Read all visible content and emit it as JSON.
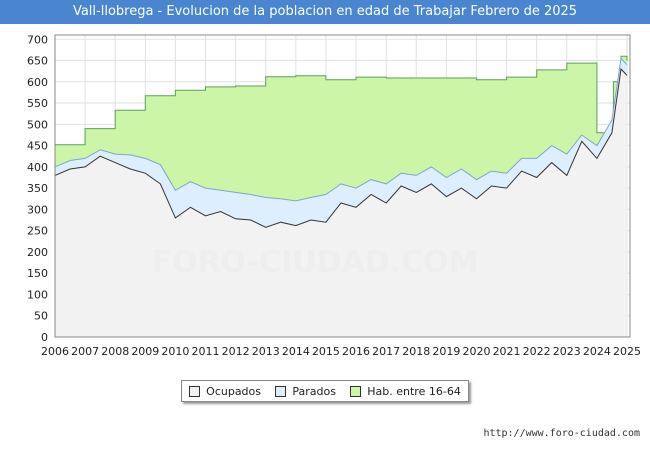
{
  "chart_data": {
    "type": "area",
    "title": "Vall-llobrega - Evolucion de la poblacion en edad de Trabajar Febrero de 2025",
    "xlabel": "",
    "ylabel": "",
    "xlim": [
      2006,
      2025.1
    ],
    "ylim": [
      0,
      710
    ],
    "yticks": [
      0,
      50,
      100,
      150,
      200,
      250,
      300,
      350,
      400,
      450,
      500,
      550,
      600,
      650,
      700
    ],
    "xticks": [
      2006,
      2007,
      2008,
      2009,
      2010,
      2011,
      2012,
      2013,
      2014,
      2015,
      2016,
      2017,
      2018,
      2019,
      2020,
      2021,
      2022,
      2023,
      2024,
      2025
    ],
    "grid": true,
    "legend_position": "bottom",
    "series": [
      {
        "name": "Hab. entre 16-64",
        "color": "#ccf5a8",
        "line_color": "#5aa05a",
        "step": true,
        "points": [
          [
            2006,
            452
          ],
          [
            2007,
            490
          ],
          [
            2008,
            533
          ],
          [
            2009,
            567
          ],
          [
            2010,
            580
          ],
          [
            2011,
            588
          ],
          [
            2012,
            590
          ],
          [
            2013,
            612
          ],
          [
            2014,
            614
          ],
          [
            2015,
            605
          ],
          [
            2016,
            611
          ],
          [
            2017,
            609
          ],
          [
            2018,
            609
          ],
          [
            2019,
            609
          ],
          [
            2020,
            605
          ],
          [
            2021,
            611
          ],
          [
            2022,
            628
          ],
          [
            2023,
            644
          ],
          [
            2024,
            480
          ],
          [
            2024.55,
            600
          ],
          [
            2024.8,
            660
          ],
          [
            2025,
            650
          ]
        ]
      },
      {
        "name": "Parados",
        "color": "#ddeeff",
        "line_color": "#7ea6cc",
        "points": [
          [
            2006,
            400
          ],
          [
            2006.5,
            415
          ],
          [
            2007,
            420
          ],
          [
            2007.5,
            440
          ],
          [
            2008,
            430
          ],
          [
            2008.5,
            428
          ],
          [
            2009,
            420
          ],
          [
            2009.5,
            405
          ],
          [
            2010,
            345
          ],
          [
            2010.5,
            365
          ],
          [
            2011,
            350
          ],
          [
            2011.5,
            345
          ],
          [
            2012,
            340
          ],
          [
            2012.5,
            335
          ],
          [
            2013,
            328
          ],
          [
            2013.5,
            325
          ],
          [
            2014,
            320
          ],
          [
            2014.5,
            328
          ],
          [
            2015,
            335
          ],
          [
            2015.5,
            360
          ],
          [
            2016,
            350
          ],
          [
            2016.5,
            370
          ],
          [
            2017,
            360
          ],
          [
            2017.5,
            385
          ],
          [
            2018,
            380
          ],
          [
            2018.5,
            400
          ],
          [
            2019,
            375
          ],
          [
            2019.5,
            395
          ],
          [
            2020,
            370
          ],
          [
            2020.5,
            390
          ],
          [
            2021,
            385
          ],
          [
            2021.5,
            420
          ],
          [
            2022,
            420
          ],
          [
            2022.5,
            450
          ],
          [
            2023,
            430
          ],
          [
            2023.5,
            475
          ],
          [
            2024,
            450
          ],
          [
            2024.5,
            510
          ],
          [
            2024.8,
            655
          ],
          [
            2025,
            640
          ]
        ]
      },
      {
        "name": "Ocupados",
        "color": "#f2f2f2",
        "line_color": "#333333",
        "points": [
          [
            2006,
            380
          ],
          [
            2006.5,
            395
          ],
          [
            2007,
            400
          ],
          [
            2007.5,
            425
          ],
          [
            2008,
            410
          ],
          [
            2008.5,
            395
          ],
          [
            2009,
            385
          ],
          [
            2009.5,
            360
          ],
          [
            2010,
            280
          ],
          [
            2010.5,
            305
          ],
          [
            2011,
            285
          ],
          [
            2011.5,
            295
          ],
          [
            2012,
            278
          ],
          [
            2012.5,
            275
          ],
          [
            2013,
            258
          ],
          [
            2013.5,
            270
          ],
          [
            2014,
            262
          ],
          [
            2014.5,
            275
          ],
          [
            2015,
            270
          ],
          [
            2015.5,
            315
          ],
          [
            2016,
            305
          ],
          [
            2016.5,
            335
          ],
          [
            2017,
            315
          ],
          [
            2017.5,
            355
          ],
          [
            2018,
            340
          ],
          [
            2018.5,
            360
          ],
          [
            2019,
            330
          ],
          [
            2019.5,
            350
          ],
          [
            2020,
            325
          ],
          [
            2020.5,
            355
          ],
          [
            2021,
            350
          ],
          [
            2021.5,
            390
          ],
          [
            2022,
            375
          ],
          [
            2022.5,
            410
          ],
          [
            2023,
            380
          ],
          [
            2023.5,
            460
          ],
          [
            2024,
            420
          ],
          [
            2024.5,
            480
          ],
          [
            2024.8,
            630
          ],
          [
            2025,
            615
          ]
        ]
      }
    ]
  },
  "source": "http://www.foro-ciudad.com",
  "watermark": "FORO-CIUDAD.COM"
}
